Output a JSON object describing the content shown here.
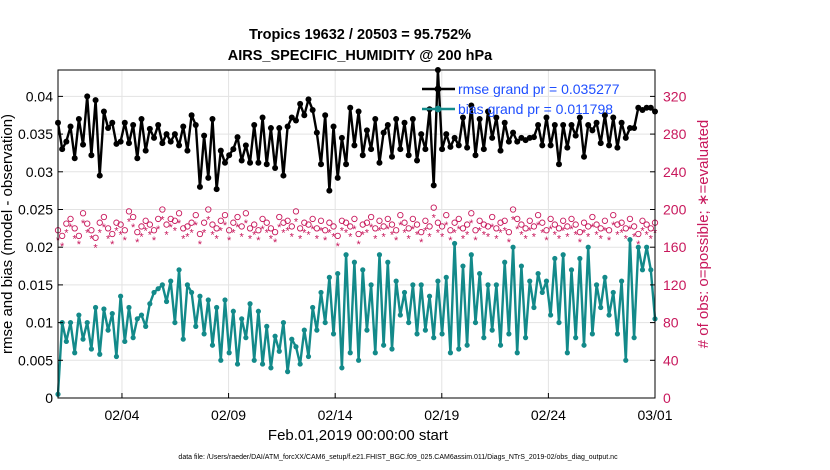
{
  "chart_data": {
    "type": "line",
    "title_line1": "Tropics 19632 / 20503 = 95.752%",
    "title_line2": "AIRS_SPECIFIC_HUMIDITY @ 200 hPa",
    "xlabel": "Feb.01,2019 00:00:00 start",
    "ylabel_left": "rmse and bias (model - observation)",
    "ylabel_right": "# of obs: o=possible; ∗=evaluated",
    "footnote": "data file: /Users/raeder/DAI/ATM_forcXX/CAM6_setup/f.e21.FHIST_BGC.f09_025.CAM6assim.011/Diags_NTrS_2019-02/obs_diag_output.nc",
    "x_range": [
      0,
      28
    ],
    "x_ticks": [
      3,
      8,
      13,
      18,
      23,
      28
    ],
    "x_tick_labels": [
      "02/04",
      "02/09",
      "02/14",
      "02/19",
      "02/24",
      "03/01"
    ],
    "ylim_left": [
      0,
      0.0435
    ],
    "yticks_left": [
      0,
      0.005,
      0.01,
      0.015,
      0.02,
      0.025,
      0.03,
      0.035,
      0.04
    ],
    "yticks_left_labels": [
      "0",
      "0.005",
      "0.01",
      "0.015",
      "0.02",
      "0.025",
      "0.03",
      "0.035",
      "0.04"
    ],
    "ylim_right": [
      0,
      348
    ],
    "yticks_right": [
      0,
      40,
      80,
      120,
      160,
      200,
      240,
      280,
      320
    ],
    "yticks_right_labels": [
      "0",
      "40",
      "80",
      "120",
      "160",
      "200",
      "240",
      "280",
      "320"
    ],
    "grid": true,
    "legend": {
      "placement": "top-right",
      "entries": [
        "rmse grand pr = 0.035277",
        "bias grand pr = 0.011798"
      ]
    },
    "colors": {
      "rmse": "#000000",
      "bias": "#138a8a",
      "obs_count": "#c8185c",
      "legend_text": "#1f4fff"
    },
    "series": [
      {
        "name": "rmse",
        "axis": "left",
        "values": [
          0.0365,
          0.033,
          0.034,
          0.036,
          0.0318,
          0.037,
          0.0336,
          0.04,
          0.0322,
          0.0395,
          0.0295,
          0.038,
          0.0358,
          0.0365,
          0.0337,
          0.034,
          0.0365,
          0.0338,
          0.0362,
          0.0318,
          0.037,
          0.0328,
          0.0357,
          0.0345,
          0.0362,
          0.0338,
          0.035,
          0.034,
          0.035,
          0.0335,
          0.036,
          0.0328,
          0.0375,
          0.0362,
          0.028,
          0.0348,
          0.0292,
          0.037,
          0.0277,
          0.0328,
          0.0312,
          0.0322,
          0.033,
          0.0346,
          0.0315,
          0.0335,
          0.0312,
          0.0362,
          0.0312,
          0.0372,
          0.031,
          0.0358,
          0.0305,
          0.0358,
          0.0295,
          0.036,
          0.0372,
          0.0368,
          0.039,
          0.0375,
          0.0396,
          0.0382,
          0.0352,
          0.031,
          0.0375,
          0.0275,
          0.036,
          0.0292,
          0.0345,
          0.031,
          0.0385,
          0.0335,
          0.038,
          0.0322,
          0.0355,
          0.033,
          0.037,
          0.0312,
          0.0352,
          0.0362,
          0.032,
          0.037,
          0.033,
          0.0365,
          0.0322,
          0.037,
          0.0315,
          0.035,
          0.033,
          0.0383,
          0.0282,
          0.0435,
          0.033,
          0.035,
          0.0333,
          0.0345,
          0.0335,
          0.0372,
          0.0332,
          0.0388,
          0.0322,
          0.037,
          0.033,
          0.038,
          0.0345,
          0.0372,
          0.0328,
          0.0365,
          0.034,
          0.0352,
          0.034,
          0.0345,
          0.0342,
          0.0345,
          0.0346,
          0.0362,
          0.0335,
          0.0372,
          0.0335,
          0.0362,
          0.031,
          0.0362,
          0.0332,
          0.0362,
          0.0348,
          0.0372,
          0.032,
          0.0362,
          0.0355,
          0.0365,
          0.0338,
          0.0375,
          0.0335,
          0.0372,
          0.0332,
          0.0365,
          0.0345,
          0.0358,
          0.0358,
          0.0385,
          0.0382,
          0.0385,
          0.0385,
          0.038
        ]
      },
      {
        "name": "bias",
        "axis": "left",
        "values": [
          0.0005,
          0.01,
          0.0075,
          0.01,
          0.006,
          0.011,
          0.0078,
          0.01,
          0.0065,
          0.012,
          0.0058,
          0.0118,
          0.009,
          0.0112,
          0.0055,
          0.0135,
          0.0075,
          0.012,
          0.008,
          0.0105,
          0.011,
          0.0095,
          0.0125,
          0.014,
          0.0145,
          0.015,
          0.0128,
          0.0155,
          0.01,
          0.017,
          0.0078,
          0.015,
          0.014,
          0.0095,
          0.0135,
          0.0085,
          0.013,
          0.007,
          0.012,
          0.005,
          0.013,
          0.006,
          0.0115,
          0.0045,
          0.0105,
          0.008,
          0.0125,
          0.005,
          0.0115,
          0.0045,
          0.0095,
          0.004,
          0.0082,
          0.0062,
          0.01,
          0.0035,
          0.0078,
          0.0068,
          0.0045,
          0.009,
          0.0055,
          0.012,
          0.009,
          0.014,
          0.01,
          0.016,
          0.0085,
          0.0165,
          0.004,
          0.019,
          0.006,
          0.018,
          0.005,
          0.017,
          0.009,
          0.015,
          0.006,
          0.019,
          0.007,
          0.018,
          0.0065,
          0.0155,
          0.011,
          0.014,
          0.01,
          0.015,
          0.0085,
          0.015,
          0.009,
          0.0135,
          0.008,
          0.0155,
          0.0085,
          0.016,
          0.006,
          0.0205,
          0.0065,
          0.0175,
          0.007,
          0.019,
          0.01,
          0.0165,
          0.008,
          0.015,
          0.009,
          0.015,
          0.007,
          0.018,
          0.0085,
          0.02,
          0.006,
          0.0175,
          0.008,
          0.0155,
          0.012,
          0.0165,
          0.014,
          0.0155,
          0.011,
          0.0185,
          0.01,
          0.019,
          0.006,
          0.017,
          0.008,
          0.0185,
          0.007,
          0.02,
          0.0085,
          0.015,
          0.012,
          0.016,
          0.011,
          0.014,
          0.0085,
          0.0155,
          0.005,
          0.021,
          0.008,
          0.02,
          0.017,
          0.02,
          0.017,
          0.0105
        ]
      },
      {
        "name": "possible",
        "axis": "right",
        "marker": "circle",
        "values": [
          178,
          172,
          185,
          190,
          180,
          172,
          196,
          185,
          178,
          170,
          186,
          192,
          180,
          174,
          186,
          184,
          178,
          198,
          192,
          176,
          182,
          188,
          184,
          178,
          190,
          200,
          184,
          190,
          188,
          196,
          180,
          182,
          186,
          194,
          174,
          186,
          200,
          184,
          180,
          188,
          194,
          178,
          186,
          192,
          182,
          196,
          180,
          184,
          178,
          190,
          186,
          180,
          176,
          192,
          186,
          188,
          182,
          198,
          180,
          186,
          184,
          190,
          180,
          188,
          178,
          186,
          182,
          172,
          188,
          186,
          182,
          190,
          174,
          184,
          186,
          192,
          180,
          188,
          182,
          190,
          184,
          178,
          194,
          186,
          180,
          190,
          184,
          176,
          188,
          182,
          202,
          186,
          182,
          194,
          178,
          186,
          190,
          180,
          184,
          196,
          178,
          188,
          184,
          182,
          192,
          180,
          186,
          188,
          176,
          200,
          190,
          184,
          180,
          188,
          182,
          194,
          186,
          178,
          190,
          184,
          180,
          188,
          182,
          190,
          184,
          176,
          186,
          182,
          192,
          184,
          180,
          188,
          178,
          194,
          184,
          186,
          180,
          190,
          182,
          174,
          188,
          184,
          180,
          186
        ]
      },
      {
        "name": "evaluated",
        "axis": "right",
        "marker": "asterisk",
        "values": [
          168,
          162,
          176,
          182,
          170,
          164,
          186,
          176,
          170,
          160,
          176,
          182,
          170,
          164,
          178,
          174,
          168,
          188,
          182,
          166,
          172,
          178,
          174,
          168,
          180,
          190,
          174,
          182,
          178,
          186,
          170,
          172,
          176,
          184,
          164,
          176,
          190,
          174,
          170,
          178,
          184,
          168,
          176,
          182,
          172,
          186,
          170,
          174,
          168,
          180,
          176,
          170,
          166,
          182,
          176,
          178,
          172,
          188,
          170,
          176,
          174,
          180,
          170,
          178,
          168,
          176,
          172,
          162,
          178,
          176,
          172,
          180,
          164,
          174,
          176,
          182,
          170,
          178,
          172,
          180,
          174,
          168,
          184,
          176,
          170,
          180,
          174,
          166,
          178,
          172,
          192,
          176,
          172,
          184,
          168,
          176,
          180,
          170,
          174,
          186,
          168,
          178,
          174,
          172,
          182,
          170,
          176,
          178,
          166,
          190,
          180,
          174,
          170,
          178,
          172,
          184,
          176,
          168,
          180,
          174,
          170,
          178,
          172,
          180,
          174,
          166,
          176,
          172,
          182,
          174,
          170,
          178,
          168,
          184,
          174,
          176,
          170,
          180,
          172,
          164,
          178,
          174,
          170,
          176
        ]
      }
    ]
  }
}
